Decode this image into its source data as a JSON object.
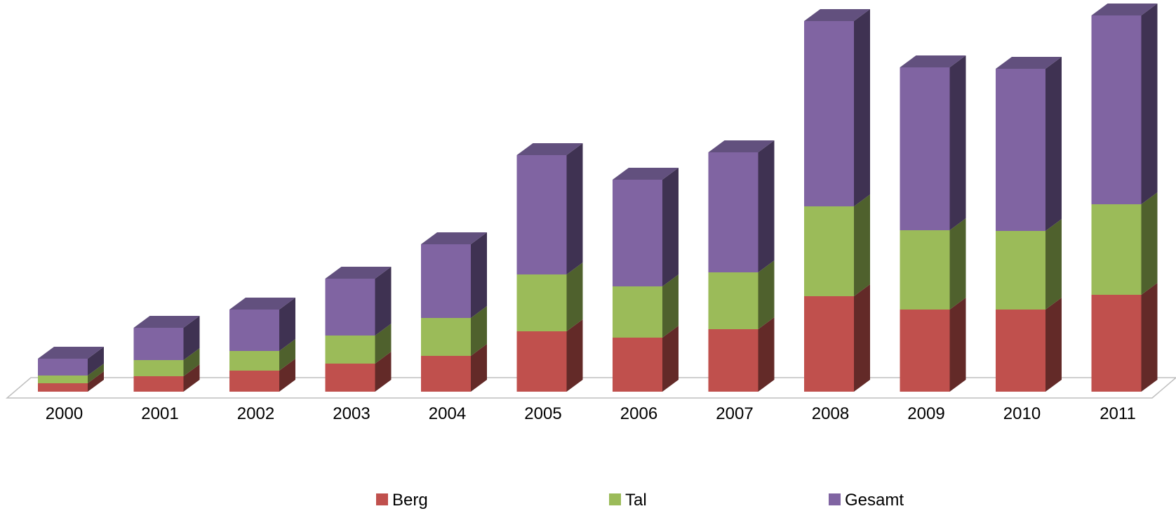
{
  "chart_data": {
    "type": "bar",
    "stacked": true,
    "three_d": true,
    "categories": [
      "2000",
      "2001",
      "2002",
      "2003",
      "2004",
      "2005",
      "2006",
      "2007",
      "2008",
      "2009",
      "2010",
      "2011"
    ],
    "series": [
      {
        "name": "Berg",
        "color": "#c0504d",
        "side_color": "#632a28",
        "top_color": "#a04442",
        "values": [
          12,
          22,
          30,
          40,
          51,
          86,
          77,
          89,
          136,
          117,
          117,
          138
        ]
      },
      {
        "name": "Tal",
        "color": "#9bbb59",
        "side_color": "#4f612d",
        "top_color": "#82a04a",
        "values": [
          11,
          23,
          28,
          40,
          54,
          81,
          73,
          81,
          128,
          113,
          112,
          129
        ]
      },
      {
        "name": "Gesamt",
        "color": "#8064a2",
        "side_color": "#3f3252",
        "top_color": "#62507e",
        "values": [
          24,
          46,
          59,
          81,
          105,
          170,
          152,
          171,
          264,
          232,
          231,
          269
        ]
      }
    ],
    "xlabel": "",
    "ylabel": "",
    "ylim": [
      0,
      540
    ],
    "grid": false,
    "y_axis_visible": false,
    "legend": {
      "position": "bottom",
      "entries": [
        "Berg",
        "Tal",
        "Gesamt"
      ]
    },
    "floor_color": "#bfbfbf"
  }
}
